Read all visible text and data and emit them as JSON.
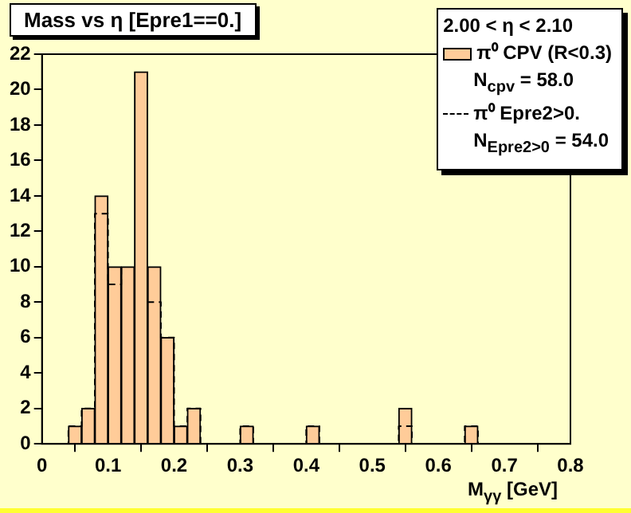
{
  "chart_data": {
    "type": "histogram",
    "title": "Mass vs η [Epre1==0.]",
    "xlabel": "M$_{γγ}$ [GeV]",
    "legend_title": "2.00 < η < 2.10",
    "bins": [
      0,
      0.02,
      0.04,
      0.06,
      0.08,
      0.1,
      0.12,
      0.14,
      0.16,
      0.18,
      0.2,
      0.22,
      0.24,
      0.26,
      0.28,
      0.3,
      0.32,
      0.34,
      0.36,
      0.38,
      0.4,
      0.42,
      0.44,
      0.46,
      0.48,
      0.5,
      0.52,
      0.54,
      0.56,
      0.58,
      0.6,
      0.62,
      0.64,
      0.66,
      0.68,
      0.7,
      0.72,
      0.74,
      0.76,
      0.78,
      0.8
    ],
    "series": [
      {
        "name": "π⁰ CPV (R<0.3)",
        "color": "#ffcc99",
        "values": [
          0,
          0,
          1,
          2,
          14,
          10,
          10,
          21,
          10,
          6,
          1,
          2,
          0,
          0,
          0,
          1,
          0,
          0,
          0,
          0,
          1,
          0,
          0,
          0,
          0,
          0,
          0,
          2,
          0,
          0,
          0,
          0,
          1,
          0,
          0,
          0,
          0,
          0,
          0,
          0
        ]
      },
      {
        "name": "π⁰ Epre2>0.",
        "color": "#000000",
        "type": "step",
        "line_style": "dashed",
        "x": [
          0,
          0.02,
          0.04,
          0.06,
          0.08,
          0.1,
          0.12,
          0.14,
          0.16,
          0.18,
          0.2,
          0.22,
          0.24,
          0.26,
          0.28,
          0.3,
          0.32,
          0.34,
          0.36,
          0.38,
          0.4,
          0.42,
          0.44,
          0.46,
          0.48,
          0.5,
          0.52,
          0.54,
          0.56,
          0.58,
          0.6,
          0.62,
          0.64,
          0.66,
          0.68,
          0.7,
          0.72,
          0.74,
          0.76,
          0.78
        ],
        "values": [
          0,
          0,
          1,
          2,
          13,
          9,
          10,
          null,
          8,
          6,
          1,
          2,
          0,
          0,
          0,
          1,
          0,
          0,
          0,
          0,
          1,
          0,
          0,
          0,
          0,
          0,
          0,
          1,
          0,
          0,
          0,
          0,
          1,
          0,
          0,
          0,
          0,
          0,
          0,
          0
        ]
      }
    ],
    "annotations": [
      "N$_{cpv}$ = 58.0",
      "N$_{Epre2>0}$ = 54.0"
    ],
    "xlim": [
      0,
      0.8
    ],
    "xticks": [
      0,
      0.1,
      0.2,
      0.3,
      0.4,
      0.5,
      0.6,
      0.7,
      0.8
    ],
    "ylim": [
      0,
      22
    ],
    "yticks": [
      0,
      2,
      4,
      6,
      8,
      10,
      12,
      14,
      16,
      18,
      20,
      22
    ],
    "grid": false,
    "legend": "top right"
  }
}
